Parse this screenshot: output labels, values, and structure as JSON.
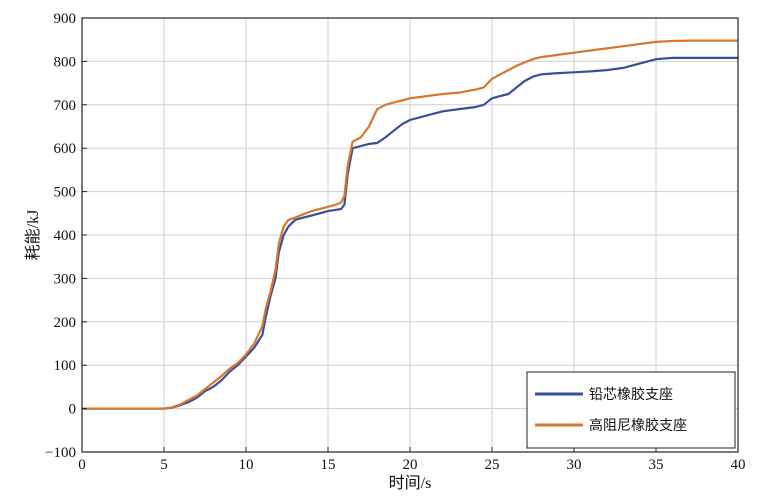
{
  "chart_data": {
    "type": "line",
    "title": "",
    "xlabel": "时间/s",
    "ylabel": "耗能/kJ",
    "xlim": [
      0,
      40
    ],
    "ylim": [
      -100,
      900
    ],
    "xticks": [
      0,
      5,
      10,
      15,
      20,
      25,
      30,
      35,
      40
    ],
    "yticks": [
      -100,
      0,
      100,
      200,
      300,
      400,
      500,
      600,
      700,
      800,
      900
    ],
    "grid": true,
    "legend_position": "bottom-right",
    "series": [
      {
        "name": "铅芯橡胶支座",
        "color": "#3a4f9a",
        "x": [
          0,
          5,
          5.5,
          6,
          6.5,
          7,
          7.5,
          8,
          8.5,
          9,
          9.5,
          10,
          10.5,
          11,
          11.2,
          11.5,
          11.8,
          12,
          12.3,
          12.6,
          13,
          13.5,
          14,
          14.5,
          15,
          15.5,
          15.8,
          16,
          16.2,
          16.5,
          17,
          17.5,
          18,
          18.5,
          19,
          19.5,
          20,
          21,
          22,
          23,
          24,
          24.5,
          25,
          25.5,
          26,
          26.5,
          27,
          27.5,
          28,
          29,
          30,
          31,
          32,
          33,
          34,
          35,
          36,
          37,
          38,
          39,
          40
        ],
        "values": [
          0,
          0,
          2,
          8,
          15,
          25,
          40,
          50,
          65,
          85,
          100,
          120,
          140,
          170,
          210,
          260,
          300,
          360,
          400,
          420,
          435,
          440,
          445,
          450,
          455,
          458,
          460,
          470,
          540,
          600,
          605,
          610,
          612,
          625,
          640,
          655,
          665,
          675,
          685,
          690,
          695,
          700,
          715,
          720,
          725,
          740,
          755,
          765,
          770,
          773,
          775,
          777,
          780,
          785,
          795,
          805,
          808,
          808,
          808,
          808,
          808
        ]
      },
      {
        "name": "高阻尼橡胶支座",
        "color": "#d9772f",
        "x": [
          0,
          5,
          5.5,
          6,
          6.5,
          7,
          7.5,
          8,
          8.5,
          9,
          9.5,
          10,
          10.5,
          11,
          11.2,
          11.5,
          11.8,
          12,
          12.3,
          12.6,
          13,
          13.5,
          14,
          14.5,
          15,
          15.5,
          15.8,
          16,
          16.2,
          16.5,
          17,
          17.5,
          18,
          18.5,
          19,
          19.5,
          20,
          21,
          22,
          23,
          24,
          24.5,
          25,
          25.5,
          26,
          26.5,
          27,
          27.5,
          28,
          29,
          30,
          31,
          32,
          33,
          34,
          35,
          36,
          37,
          38,
          39,
          40
        ],
        "values": [
          0,
          0,
          3,
          10,
          20,
          30,
          45,
          60,
          75,
          92,
          105,
          125,
          150,
          190,
          230,
          270,
          320,
          380,
          420,
          435,
          440,
          448,
          455,
          460,
          465,
          470,
          475,
          490,
          560,
          615,
          625,
          650,
          690,
          700,
          705,
          710,
          715,
          720,
          725,
          728,
          735,
          740,
          760,
          770,
          780,
          790,
          798,
          805,
          810,
          815,
          820,
          825,
          830,
          835,
          840,
          845,
          847,
          848,
          848,
          848,
          848
        ]
      }
    ]
  }
}
